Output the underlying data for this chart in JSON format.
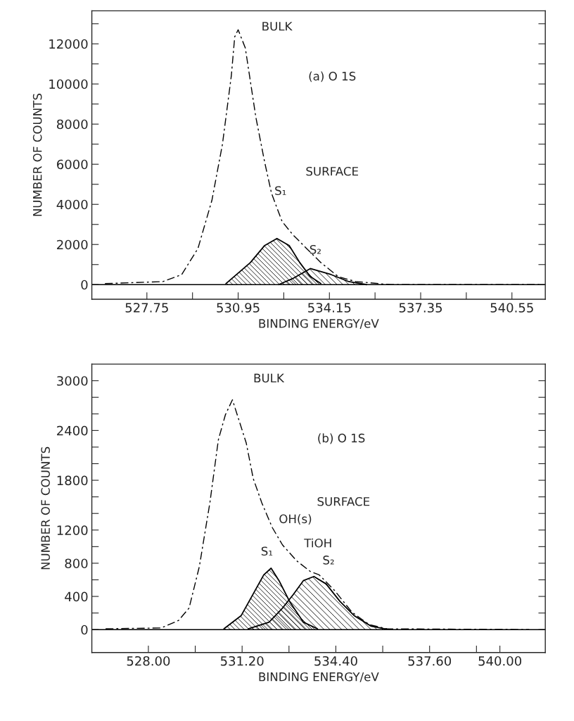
{
  "chart_data": [
    {
      "type": "line",
      "title": "(a) O 1S",
      "xlabel": "BINDING ENERGY/eV",
      "ylabel": "NUMBER OF COUNTS",
      "xlim": [
        525.82,
        541.72
      ],
      "ylim": [
        -727,
        13645
      ],
      "xticks": [
        527.75,
        {
          "value": 529.35,
          "label": null
        },
        530.95,
        {
          "value": 532.55,
          "label": null
        },
        534.15,
        {
          "value": 535.75,
          "label": null
        },
        537.35,
        {
          "value": 538.95,
          "label": null
        },
        540.55
      ],
      "yticks": [
        0,
        {
          "value": 1000,
          "label": null
        },
        2000,
        {
          "value": 3000,
          "label": null
        },
        4000,
        {
          "value": 5000,
          "label": null
        },
        6000,
        {
          "value": 7000,
          "label": null
        },
        8000,
        {
          "value": 9000,
          "label": null
        },
        10000,
        {
          "value": 11000,
          "label": null
        },
        12000,
        {
          "value": 13000,
          "label": null
        }
      ],
      "ref_lines": [
        {
          "axis": "y",
          "value": 0,
          "color": "#000000"
        }
      ],
      "series": [
        {
          "type": "line",
          "line_style": "dashed",
          "color": "#000000",
          "x": [
            526.28,
            528.31,
            528.97,
            529.54,
            530.03,
            530.4,
            530.71,
            530.83,
            530.95,
            531.2,
            531.57,
            531.88,
            532.12,
            532.49,
            532.86,
            533.35,
            533.85,
            534.46,
            535.08,
            536.3,
            538.5,
            541.5
          ],
          "values": [
            50,
            150,
            500,
            1800,
            4200,
            7000,
            10400,
            12350,
            12700,
            11800,
            8350,
            6100,
            4550,
            3150,
            2500,
            1800,
            1100,
            400,
            150,
            0,
            0,
            0
          ]
        },
        {
          "type": "area",
          "color": "#000000",
          "x": [
            530.52,
            531.38,
            531.88,
            532.31,
            532.74,
            533.11,
            533.48,
            533.85
          ],
          "values": [
            50,
            1100,
            1950,
            2300,
            1950,
            1100,
            400,
            50
          ]
        },
        {
          "type": "area",
          "color": "#000000",
          "x": [
            532.37,
            532.86,
            533.48,
            534.21,
            534.83,
            535.45
          ],
          "values": [
            0,
            300,
            800,
            500,
            150,
            0
          ]
        }
      ],
      "annotations": [
        "BULK",
        "SURFACE",
        "S₁",
        "S₂"
      ]
    },
    {
      "type": "line",
      "title": "(b) O 1S",
      "xlabel": "BINDING ENERGY/eV",
      "ylabel": "NUMBER OF COUNTS",
      "xlim": [
        526.07,
        541.55
      ],
      "ylim": [
        -276,
        3200
      ],
      "xticks": [
        {
          "value": 528.0,
          "label": "528.00"
        },
        {
          "value": 529.6,
          "label": null
        },
        {
          "value": 531.2,
          "label": "531.20"
        },
        {
          "value": 532.8,
          "label": null
        },
        {
          "value": 534.4,
          "label": "534.40"
        },
        {
          "value": 536.0,
          "label": null
        },
        {
          "value": 537.6,
          "label": "537.60"
        },
        {
          "value": 539.2,
          "label": null
        },
        {
          "value": 540.0,
          "label": "540.00"
        }
      ],
      "yticks": [
        0,
        {
          "value": 200,
          "label": null
        },
        400,
        {
          "value": 600,
          "label": null
        },
        800,
        {
          "value": 1000,
          "label": null
        },
        1200,
        {
          "value": 1400,
          "label": null
        },
        {
          "value": 1600,
          "label": null
        },
        1800,
        {
          "value": 2000,
          "label": null
        },
        {
          "value": 2200,
          "label": null
        },
        2400,
        {
          "value": 2600,
          "label": null
        },
        {
          "value": 2800,
          "label": null
        },
        3000
      ],
      "ref_lines": [
        {
          "axis": "y",
          "value": 0,
          "color": "#000000"
        }
      ],
      "series": [
        {
          "type": "line",
          "line_style": "dashed",
          "color": "#000000",
          "x": [
            526.54,
            528.44,
            529.03,
            529.39,
            529.74,
            530.1,
            530.39,
            530.63,
            530.87,
            531.34,
            531.58,
            531.87,
            532.23,
            532.58,
            533.06,
            533.53,
            533.83,
            534.36,
            534.95,
            535.54,
            536.14,
            541.0
          ],
          "values": [
            10,
            20,
            110,
            260,
            760,
            1530,
            2290,
            2590,
            2770,
            2250,
            1820,
            1530,
            1230,
            1020,
            830,
            700,
            660,
            470,
            210,
            60,
            10,
            0
          ]
        },
        {
          "type": "area",
          "color": "#000000",
          "x": [
            530.58,
            531.17,
            531.64,
            531.94,
            532.19,
            532.46,
            532.82,
            533.29,
            533.77
          ],
          "values": [
            10,
            170,
            470,
            660,
            740,
            590,
            340,
            90,
            10
          ]
        },
        {
          "type": "area",
          "color": "#000000",
          "x": [
            531.41,
            532.12,
            532.58,
            532.94,
            533.29,
            533.65,
            534.07,
            534.54,
            535.02,
            535.61,
            536.2
          ],
          "values": [
            10,
            90,
            260,
            420,
            590,
            640,
            550,
            340,
            170,
            40,
            0
          ]
        }
      ],
      "annotations": [
        "BULK",
        "SURFACE",
        "OH(s)",
        "TiOH",
        "S₁",
        "S₂"
      ]
    }
  ]
}
